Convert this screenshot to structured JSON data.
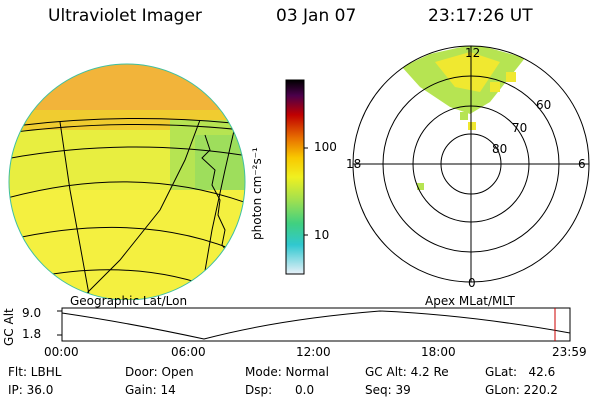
{
  "header": {
    "instrument": "Ultraviolet Imager",
    "date": "03 Jan 07",
    "time": "23:17:26 UT"
  },
  "colorbar": {
    "unit_label": "photon cm⁻²s⁻¹",
    "ticks": [
      "100",
      "10"
    ],
    "colors": [
      "#000000",
      "#4b004b",
      "#c00000",
      "#e87000",
      "#f8c800",
      "#f0f020",
      "#a0e050",
      "#40d080",
      "#30c8d0",
      "#e8f0f8"
    ]
  },
  "map": {
    "label": "Geographic Lat/Lon"
  },
  "polar": {
    "label": "Apex MLat/MLT",
    "mlt_labels": {
      "top": "12",
      "left": "18",
      "right": "6",
      "bottom": "0"
    },
    "lat_labels": [
      "60",
      "70",
      "80"
    ]
  },
  "altitude_plot": {
    "ylabel": "GC Alt",
    "yticks": [
      "9.0",
      "1.8"
    ],
    "xticks": [
      "00:00",
      "06:00",
      "12:00",
      "18:00",
      "23:59"
    ],
    "current_time_color": "#cc0000"
  },
  "status": {
    "flt": "Flt: LBHL",
    "ip": "IP: 36.0",
    "door": "Door: Open",
    "gain": "Gain: 14",
    "mode": "Mode: Normal",
    "dsp": "Dsp:      0.0",
    "gc_alt": "GC Alt: 4.2 Re",
    "seq": "Seq: 39",
    "glat": "GLat:   42.6",
    "glon": "GLon: 220.2"
  }
}
